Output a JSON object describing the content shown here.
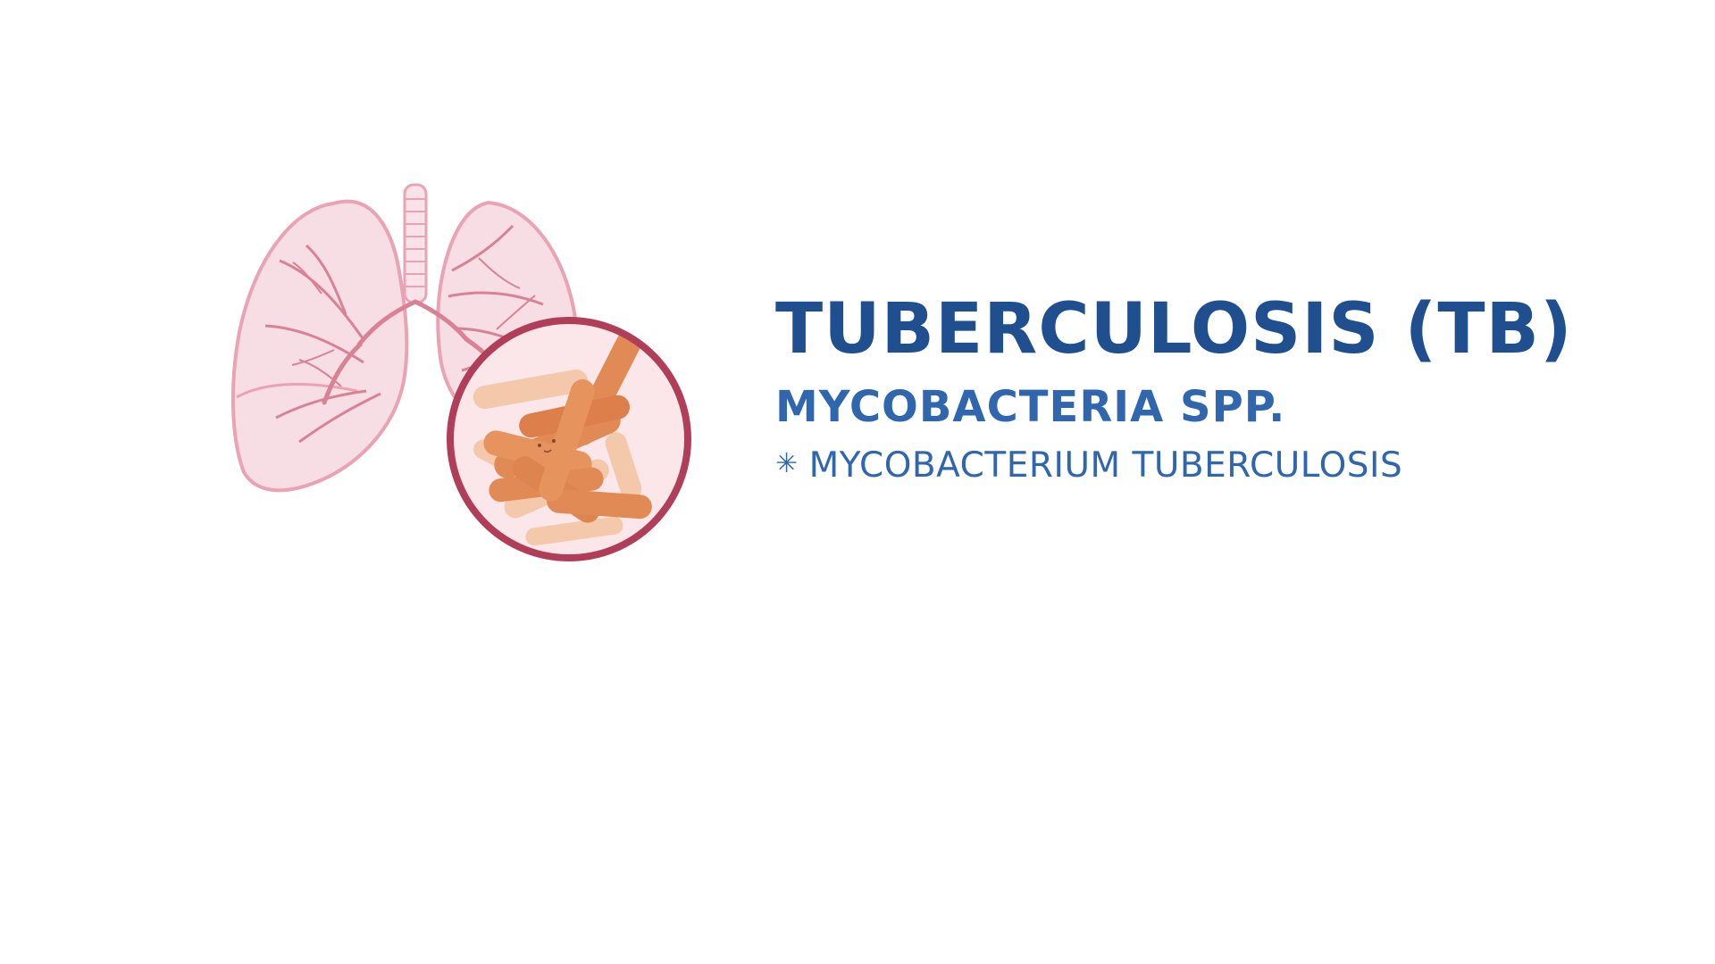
{
  "content": {
    "title": "TUBERCULOSIS (TB)",
    "subtitle": "MYCOBACTERIA SPP.",
    "bullet": {
      "icon": "asterisk-bullet-icon",
      "text": "MYCOBACTERIUM TUBERCULOSIS"
    }
  },
  "illustration": {
    "subject": "lungs-with-magnified-bacteria-icon",
    "colors": {
      "lung_fill": "#f7dde4",
      "lung_outline": "#e9a3b4",
      "vessel": "#d98296",
      "circle_border": "#b13e58",
      "circle_fill": "#fbe7ea",
      "bacteria_main": "#e28a55",
      "bacteria_light": "#f4c8aa"
    }
  },
  "theme": {
    "title_color": "#1f4f8f",
    "text_color": "#2f66ad",
    "background": "#ffffff"
  }
}
